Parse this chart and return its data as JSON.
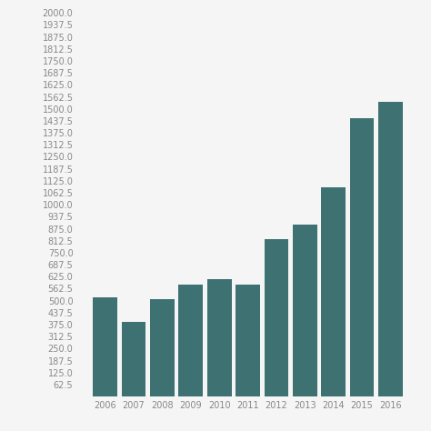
{
  "years": [
    2006,
    2007,
    2008,
    2009,
    2010,
    2011,
    2012,
    2013,
    2014,
    2015,
    2016
  ],
  "values": [
    515,
    390,
    510,
    585,
    610,
    585,
    820,
    895,
    1090,
    1450,
    1535
  ],
  "bar_color": "#3d7172",
  "background_color": "#f5f5f5",
  "ylim": [
    0,
    2000
  ],
  "ytick_start": 62.5,
  "ytick_step": 62.5,
  "ylabel_fontsize": 7,
  "xlabel_fontsize": 7,
  "bar_width": 0.85,
  "figsize": [
    4.74,
    4.74
  ],
  "dpi": 100
}
